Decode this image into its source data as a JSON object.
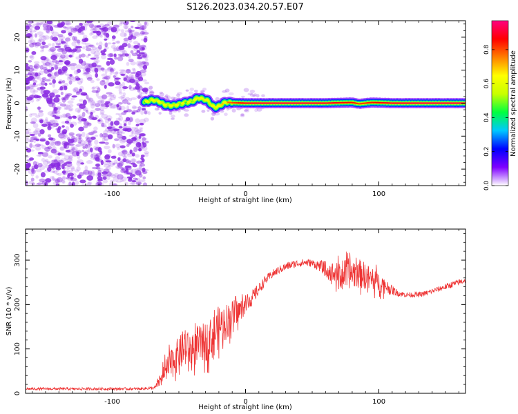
{
  "figure": {
    "title": "S126.2023.034.20.57.E07"
  },
  "colors": {
    "snr_line": "#ee3333",
    "background_speckle": "#8a2be2",
    "colormap": [
      "#ffffff",
      "#7f00ff",
      "#0000ff",
      "#00c8ff",
      "#00ff40",
      "#c8ff00",
      "#ffff00",
      "#ff8000",
      "#ff0000",
      "#ff0080"
    ]
  },
  "chart_data": [
    {
      "type": "heatmap",
      "xlabel": "Height of straight line (km)",
      "ylabel": "Frequency (Hz)",
      "xlim": [
        -165,
        165
      ],
      "ylim": [
        -25,
        25
      ],
      "xticks": [
        {
          "value": -100,
          "label": "-100"
        },
        {
          "value": 0,
          "label": "0"
        },
        {
          "value": 100,
          "label": "100"
        }
      ],
      "yticks": [
        {
          "value": -20,
          "label": "-20"
        },
        {
          "value": -10,
          "label": "-10"
        },
        {
          "value": 0,
          "label": "0"
        },
        {
          "value": 10,
          "label": "10"
        },
        {
          "value": 20,
          "label": "20"
        }
      ],
      "noise_region_x": [
        -165,
        -74
      ],
      "ridge": {
        "x": [
          -76,
          -70,
          -65,
          -60,
          -55,
          -50,
          -45,
          -40,
          -36,
          -32,
          -28,
          -25,
          -22,
          -18,
          -15,
          -10,
          0,
          20,
          40,
          60,
          80,
          85,
          95,
          110,
          130,
          150,
          165
        ],
        "y": [
          0.3,
          1.0,
          0.5,
          -0.6,
          -0.8,
          -0.4,
          0.2,
          0.5,
          1.6,
          1.3,
          0.7,
          -0.8,
          -1.3,
          -0.4,
          0.3,
          0.1,
          0.0,
          0.0,
          0.0,
          0.0,
          0.2,
          -0.2,
          0.2,
          0.0,
          0.0,
          0.0,
          0.0
        ],
        "amplitude": [
          0.45,
          0.55,
          0.55,
          0.5,
          0.55,
          0.5,
          0.45,
          0.5,
          0.6,
          0.6,
          0.55,
          0.55,
          0.6,
          0.7,
          0.75,
          0.8,
          0.9,
          0.92,
          0.92,
          0.9,
          0.85,
          0.8,
          0.85,
          0.9,
          0.92,
          0.92,
          0.92
        ]
      },
      "colorbar": {
        "label": "Normalized spectral amplitude",
        "range": [
          0,
          0.97
        ],
        "ticks": [
          {
            "value": 0.0,
            "label": "0.0"
          },
          {
            "value": 0.2,
            "label": "0.2"
          },
          {
            "value": 0.4,
            "label": "0.4"
          },
          {
            "value": 0.6,
            "label": "0.6"
          },
          {
            "value": 0.8,
            "label": "0.8"
          }
        ]
      }
    },
    {
      "type": "line",
      "xlabel": "Height of straight line (km)",
      "ylabel": "SNR (10 * v/v)",
      "xlim": [
        -165,
        165
      ],
      "ylim": [
        0,
        370
      ],
      "xticks": [
        {
          "value": -100,
          "label": "-100"
        },
        {
          "value": 0,
          "label": "0"
        },
        {
          "value": 100,
          "label": "100"
        }
      ],
      "yticks": [
        {
          "value": 0,
          "label": "0"
        },
        {
          "value": 100,
          "label": "100"
        },
        {
          "value": 200,
          "label": "200"
        },
        {
          "value": 300,
          "label": "300"
        }
      ],
      "series": [
        {
          "x": [
            -165,
            -140,
            -120,
            -100,
            -80,
            -68,
            -62,
            -55,
            -50,
            -45,
            -40,
            -35,
            -30,
            -25,
            -20,
            -15,
            -10,
            -5,
            0,
            5,
            10,
            15,
            20,
            25,
            30,
            35,
            40,
            45,
            50,
            55,
            60,
            65,
            70,
            75,
            80,
            85,
            90,
            95,
            100,
            105,
            110,
            115,
            120,
            125,
            130,
            135,
            140,
            145,
            150,
            155,
            160,
            165
          ],
          "y": [
            10,
            10,
            10,
            10,
            10,
            12,
            40,
            70,
            90,
            100,
            95,
            110,
            115,
            125,
            150,
            160,
            175,
            185,
            200,
            215,
            235,
            255,
            268,
            278,
            285,
            290,
            293,
            295,
            293,
            288,
            280,
            272,
            265,
            268,
            272,
            270,
            265,
            255,
            250,
            242,
            232,
            225,
            222,
            222,
            222,
            225,
            230,
            235,
            240,
            245,
            250,
            255
          ],
          "noise_amplitude": [
            5,
            5,
            5,
            5,
            5,
            6,
            40,
            60,
            65,
            70,
            65,
            70,
            75,
            80,
            80,
            70,
            60,
            45,
            35,
            30,
            22,
            18,
            15,
            15,
            15,
            15,
            14,
            14,
            14,
            20,
            30,
            40,
            50,
            55,
            60,
            55,
            50,
            45,
            40,
            30,
            18,
            12,
            10,
            10,
            10,
            10,
            10,
            10,
            12,
            12,
            12,
            12
          ]
        }
      ]
    }
  ]
}
